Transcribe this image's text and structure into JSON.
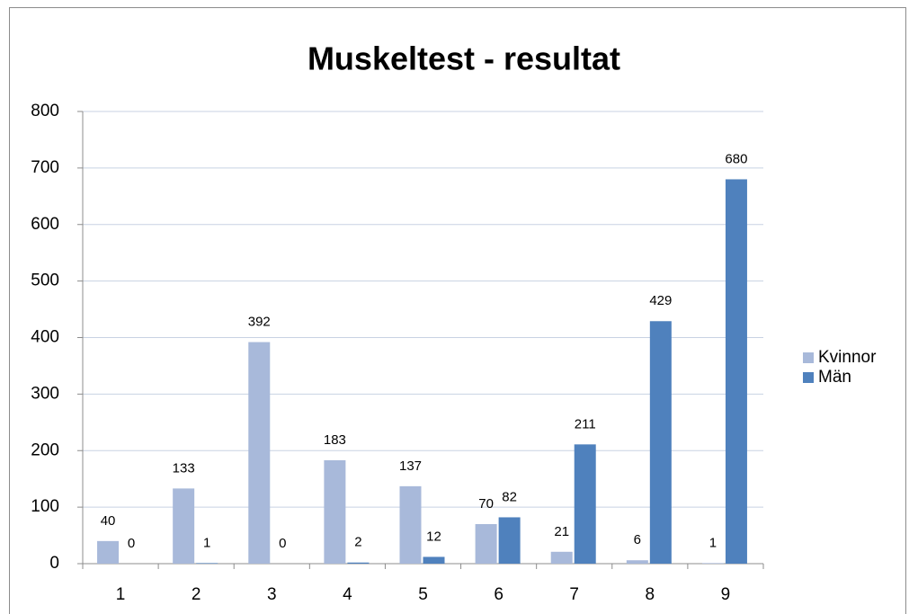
{
  "chart_data": {
    "type": "bar",
    "title": "Muskeltest - resultat",
    "categories": [
      "1",
      "2",
      "3",
      "4",
      "5",
      "6",
      "7",
      "8",
      "9"
    ],
    "series": [
      {
        "name": "Kvinnor",
        "color": "#a8b9da",
        "values": [
          40,
          133,
          392,
          183,
          137,
          70,
          21,
          6,
          1
        ]
      },
      {
        "name": "Män",
        "color": "#4f81bd",
        "values": [
          0,
          1,
          0,
          2,
          12,
          82,
          211,
          429,
          680
        ]
      }
    ],
    "ylim": [
      0,
      800
    ],
    "yticks": [
      0,
      100,
      200,
      300,
      400,
      500,
      600,
      700,
      800
    ],
    "grid": true,
    "legend": "right"
  }
}
